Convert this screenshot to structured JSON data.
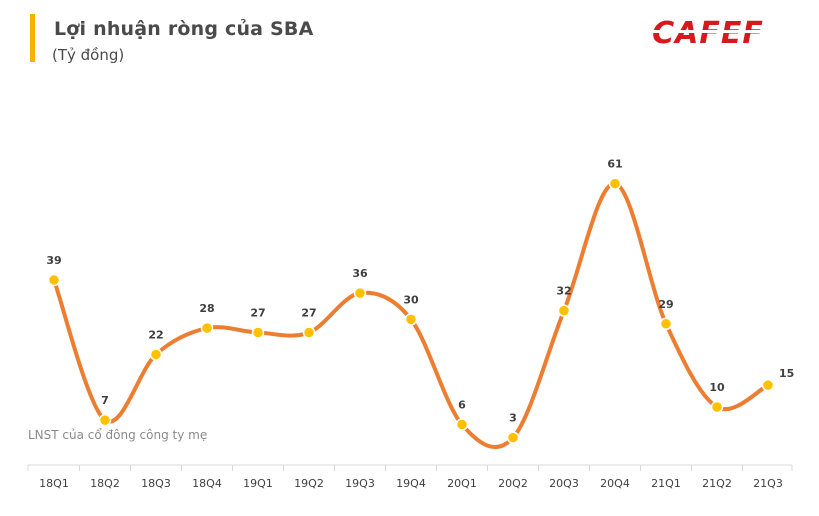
{
  "header": {
    "title": "Lợi nhuận ròng của SBA",
    "subtitle": "(Tỷ đồng)",
    "logo_text": "CAFEF"
  },
  "colors": {
    "accent": "#f5b300",
    "line": "#ed7d31",
    "marker": "#ffc000",
    "logo_red": "#d7181f"
  },
  "chart_data": {
    "type": "line",
    "title": "Lợi nhuận ròng của SBA",
    "subtitle": "(Tỷ đồng)",
    "categories": [
      "18Q1",
      "18Q2",
      "18Q3",
      "18Q4",
      "19Q1",
      "19Q2",
      "19Q3",
      "19Q4",
      "20Q1",
      "20Q2",
      "20Q3",
      "20Q4",
      "21Q1",
      "21Q2",
      "21Q3"
    ],
    "series": [
      {
        "name": "LNST của cổ đông công ty mẹ",
        "values": [
          39,
          7,
          22,
          28,
          27,
          27,
          36,
          30,
          6,
          3,
          32,
          61,
          29,
          10,
          15
        ]
      }
    ],
    "data_labels": [
      "39",
      "7",
      "22",
      "28",
      "27",
      "27",
      "36",
      "30",
      "6",
      "3",
      "32",
      "61",
      "29",
      "10",
      "15"
    ],
    "smooth": true,
    "grid": false,
    "y_axis_visible": false
  }
}
